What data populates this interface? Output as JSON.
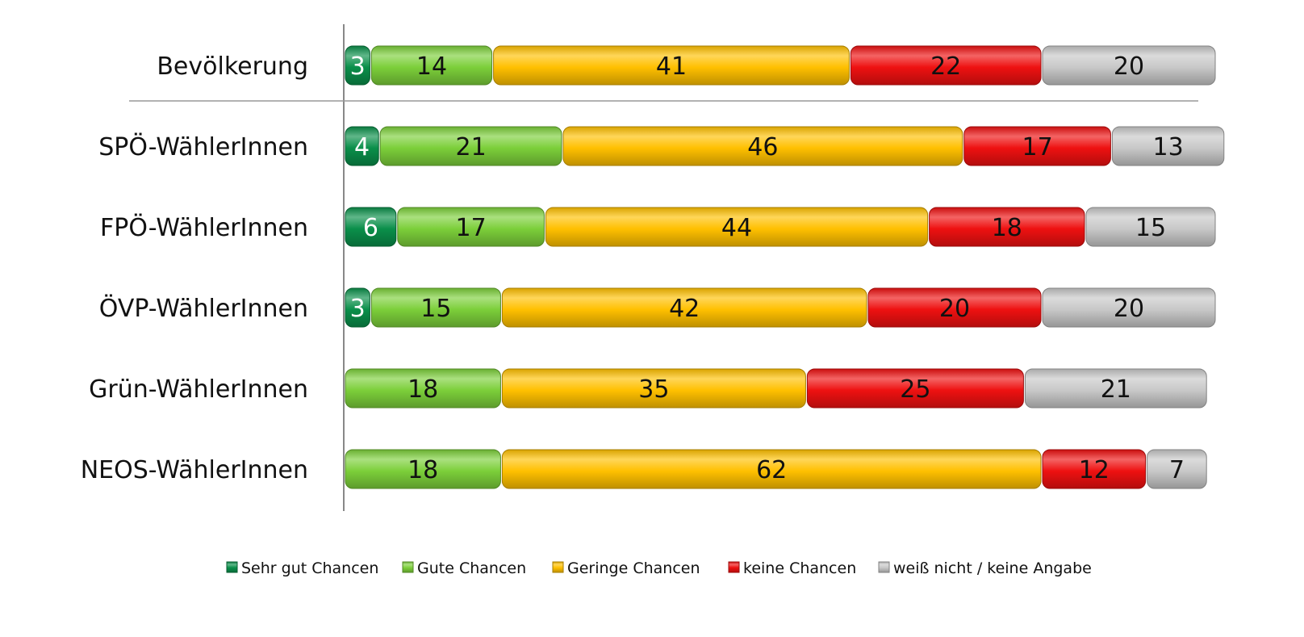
{
  "chart_data": {
    "type": "bar",
    "orientation": "horizontal",
    "stacked": true,
    "categories": [
      "Bevölkerung",
      "SPÖ-WählerInnen",
      "FPÖ-WählerInnen",
      "ÖVP-WählerInnen",
      "Grün-WählerInnen",
      "NEOS-WählerInnen"
    ],
    "series": [
      {
        "name": "Sehr gut Chancen",
        "color": "#0a8f4a",
        "label_color": "#ffffff",
        "values": [
          3,
          4,
          6,
          3,
          null,
          null
        ]
      },
      {
        "name": "Gute Chancen",
        "color": "#7ccf3a",
        "label_color": "#111111",
        "values": [
          14,
          21,
          17,
          15,
          18,
          18
        ]
      },
      {
        "name": "Geringe Chancen",
        "color": "#ffc000",
        "label_color": "#111111",
        "values": [
          41,
          46,
          44,
          42,
          35,
          62
        ]
      },
      {
        "name": "keine Chancen",
        "color": "#ee1111",
        "label_color": "#111111",
        "values": [
          22,
          17,
          18,
          20,
          25,
          12
        ]
      },
      {
        "name": "weiß nicht / keine Angabe",
        "color": "#c8c8c8",
        "label_color": "#111111",
        "values": [
          20,
          13,
          15,
          20,
          21,
          7
        ]
      }
    ],
    "title": "",
    "xlabel": "",
    "ylabel": "",
    "xlim": [
      0,
      100
    ],
    "grid": false,
    "separator_after_category": "Bevölkerung",
    "legend_position": "bottom"
  }
}
